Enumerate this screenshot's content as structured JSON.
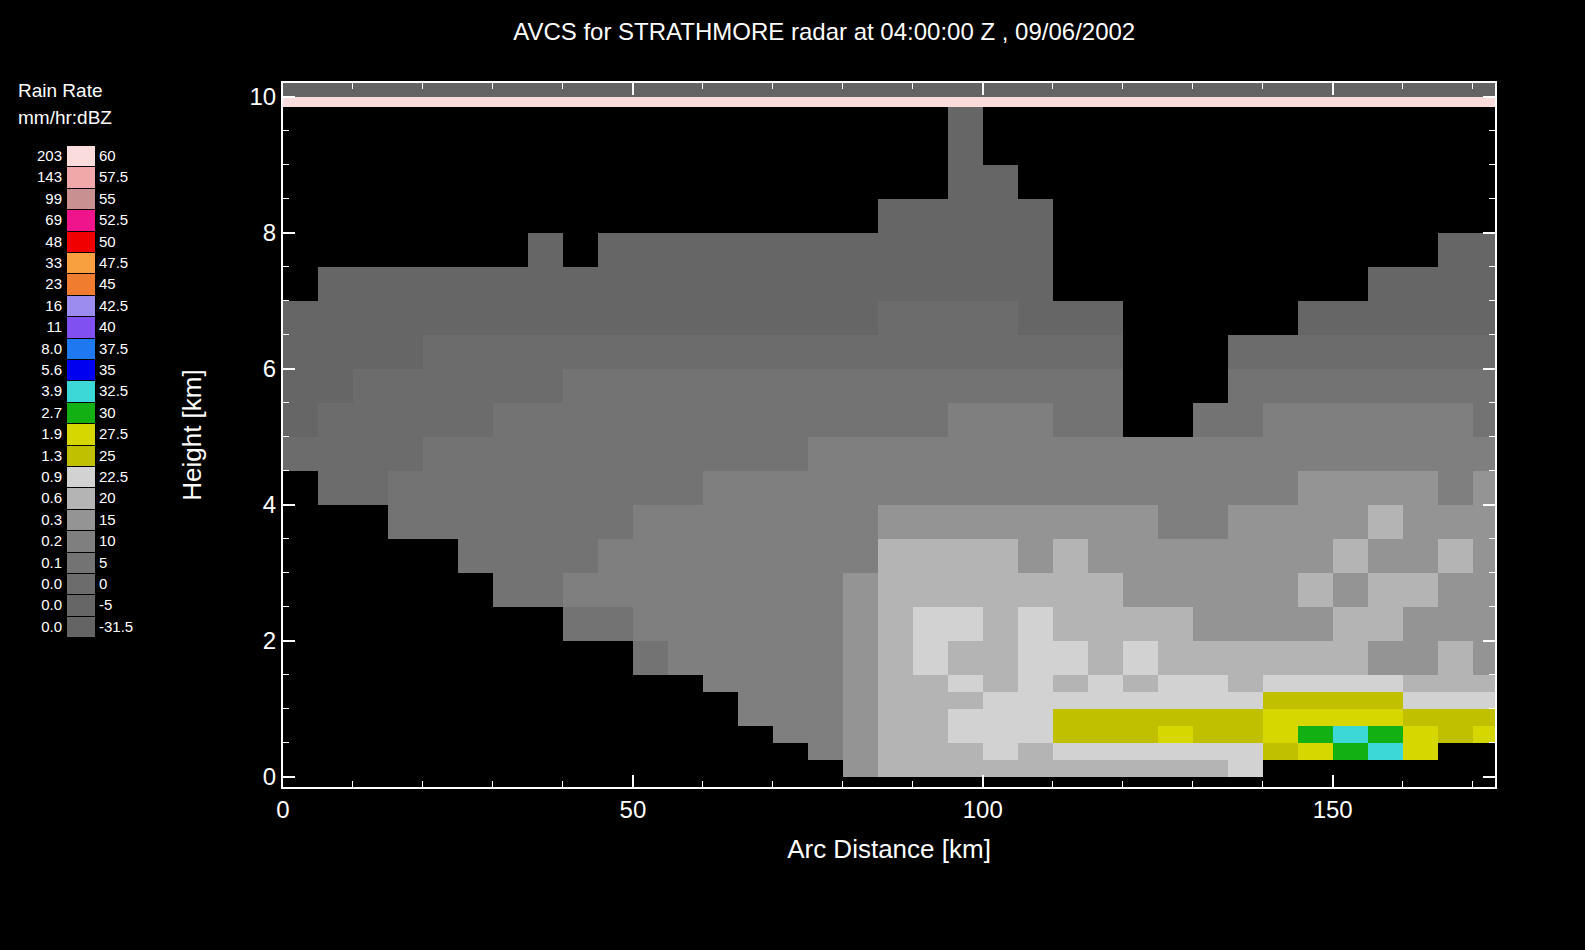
{
  "chart_data": {
    "type": "heatmap",
    "title": "AVCS for STRATHMORE radar at 04:00:00 Z , 09/06/2002",
    "x_label": "Arc Distance [km]",
    "y_label": "Height [km]",
    "xlim": [
      0,
      173.2
    ],
    "ylim": [
      -0.15,
      10.2
    ],
    "xticks": [
      0,
      50,
      100,
      150
    ],
    "yticks": [
      0,
      2,
      4,
      6,
      8,
      10
    ],
    "grid": false,
    "x": [
      0,
      5,
      10,
      15,
      20,
      25,
      30,
      35,
      40,
      45,
      50,
      55,
      60,
      65,
      70,
      75,
      80,
      85,
      90,
      95,
      100,
      105,
      110,
      115,
      120,
      125,
      130,
      135,
      140,
      145,
      150,
      155,
      160,
      165,
      170,
      175
    ],
    "y": [
      0,
      0.25,
      0.5,
      0.75,
      1,
      1.25,
      1.5,
      2,
      2.5,
      3,
      3.5,
      4,
      4.5,
      5,
      5.5,
      6,
      6.5,
      7,
      7.5,
      8,
      8.5,
      9,
      9.5,
      9.85,
      10,
      10.2
    ],
    "z": [
      [
        null,
        null,
        null,
        null,
        null,
        null,
        null,
        null,
        null,
        null,
        null,
        null,
        null,
        null,
        null,
        null,
        15,
        20,
        20,
        20,
        20,
        20,
        20,
        20,
        20,
        20,
        20,
        22.5,
        null,
        null,
        null,
        null,
        null,
        null,
        null
      ],
      [
        null,
        null,
        null,
        null,
        null,
        null,
        null,
        null,
        null,
        null,
        null,
        null,
        null,
        null,
        null,
        10,
        15,
        20,
        20,
        20,
        22.5,
        20,
        22.5,
        22.5,
        22.5,
        22.5,
        22.5,
        22.5,
        25,
        27.5,
        30,
        32.5,
        27.5,
        null,
        null
      ],
      [
        null,
        null,
        null,
        null,
        null,
        null,
        null,
        null,
        null,
        null,
        null,
        null,
        null,
        null,
        10,
        10,
        15,
        20,
        20,
        22.5,
        22.5,
        22.5,
        25,
        25,
        25,
        27.5,
        25,
        25,
        27.5,
        30,
        32.5,
        30,
        27.5,
        25,
        27.5
      ],
      [
        null,
        null,
        null,
        null,
        null,
        null,
        null,
        null,
        null,
        null,
        null,
        null,
        null,
        10,
        10,
        10,
        15,
        20,
        20,
        22.5,
        22.5,
        22.5,
        25,
        25,
        25,
        25,
        25,
        25,
        27.5,
        27.5,
        27.5,
        27.5,
        25,
        25,
        25
      ],
      [
        null,
        null,
        null,
        null,
        null,
        null,
        null,
        null,
        null,
        null,
        null,
        null,
        null,
        10,
        10,
        10,
        15,
        20,
        20,
        20,
        22.5,
        22.5,
        22.5,
        22.5,
        22.5,
        22.5,
        22.5,
        22.5,
        25,
        25,
        25,
        25,
        22.5,
        22.5,
        22.5
      ],
      [
        null,
        null,
        null,
        null,
        null,
        null,
        null,
        null,
        null,
        null,
        null,
        null,
        10,
        10,
        10,
        10,
        15,
        20,
        20,
        22.5,
        20,
        22.5,
        20,
        22.5,
        20,
        22.5,
        22.5,
        20,
        22.5,
        22.5,
        22.5,
        22.5,
        20,
        20,
        20
      ],
      [
        null,
        null,
        null,
        null,
        null,
        null,
        null,
        null,
        null,
        null,
        5,
        10,
        10,
        10,
        10,
        10,
        15,
        20,
        22.5,
        20,
        20,
        22.5,
        22.5,
        20,
        22.5,
        20,
        20,
        20,
        20,
        20,
        20,
        15,
        15,
        20,
        15
      ],
      [
        null,
        null,
        null,
        null,
        null,
        null,
        null,
        null,
        5,
        5,
        10,
        10,
        10,
        10,
        10,
        10,
        15,
        20,
        22.5,
        22.5,
        20,
        22.5,
        20,
        20,
        20,
        20,
        15,
        15,
        15,
        15,
        20,
        20,
        15,
        15,
        15
      ],
      [
        null,
        null,
        null,
        null,
        null,
        null,
        5,
        5,
        10,
        10,
        10,
        10,
        10,
        10,
        10,
        10,
        15,
        20,
        20,
        20,
        20,
        20,
        20,
        20,
        15,
        15,
        15,
        15,
        15,
        20,
        15,
        20,
        20,
        15,
        15
      ],
      [
        null,
        null,
        null,
        null,
        null,
        5,
        5,
        5,
        5,
        10,
        10,
        10,
        10,
        10,
        10,
        10,
        10,
        20,
        20,
        20,
        20,
        15,
        20,
        15,
        15,
        15,
        15,
        15,
        15,
        15,
        20,
        15,
        15,
        20,
        15
      ],
      [
        null,
        null,
        null,
        5,
        5,
        5,
        5,
        5,
        5,
        5,
        10,
        10,
        10,
        10,
        10,
        10,
        10,
        15,
        15,
        15,
        15,
        15,
        15,
        15,
        15,
        10,
        10,
        15,
        15,
        15,
        15,
        20,
        15,
        15,
        15
      ],
      [
        null,
        0,
        0,
        5,
        5,
        5,
        5,
        5,
        5,
        5,
        5,
        5,
        10,
        10,
        10,
        10,
        10,
        10,
        10,
        10,
        10,
        10,
        10,
        10,
        10,
        10,
        10,
        10,
        10,
        15,
        15,
        15,
        15,
        10,
        15
      ],
      [
        0,
        0,
        0,
        0,
        5,
        5,
        5,
        5,
        5,
        5,
        5,
        5,
        5,
        5,
        5,
        10,
        10,
        10,
        10,
        10,
        10,
        10,
        10,
        10,
        10,
        10,
        10,
        10,
        10,
        10,
        10,
        10,
        10,
        10,
        10
      ],
      [
        -5,
        0,
        0,
        0,
        0,
        0,
        5,
        5,
        5,
        5,
        5,
        5,
        5,
        5,
        5,
        5,
        5,
        5,
        5,
        10,
        10,
        10,
        5,
        5,
        null,
        null,
        5,
        5,
        10,
        10,
        10,
        10,
        10,
        10,
        5
      ],
      [
        -5,
        -5,
        0,
        0,
        0,
        0,
        0,
        0,
        5,
        5,
        5,
        5,
        5,
        5,
        5,
        5,
        5,
        5,
        5,
        5,
        5,
        5,
        5,
        5,
        null,
        null,
        null,
        5,
        5,
        5,
        5,
        5,
        5,
        5,
        5
      ],
      [
        -5,
        -5,
        -5,
        -5,
        0,
        0,
        0,
        0,
        0,
        0,
        0,
        0,
        0,
        0,
        0,
        0,
        0,
        0,
        0,
        0,
        0,
        0,
        0,
        0,
        null,
        null,
        null,
        0,
        0,
        0,
        0,
        0,
        0,
        0,
        0
      ],
      [
        -5,
        -5,
        -5,
        -5,
        -5,
        -5,
        -5,
        -5,
        -5,
        -5,
        -5,
        -5,
        -5,
        -5,
        -5,
        -5,
        -5,
        0,
        0,
        0,
        0,
        -5,
        -5,
        -5,
        null,
        null,
        null,
        null,
        null,
        -5,
        -5,
        -5,
        -5,
        -5,
        -5
      ],
      [
        null,
        -5,
        -5,
        -5,
        -5,
        -5,
        -5,
        -5,
        -5,
        -5,
        -5,
        -5,
        -5,
        -5,
        -5,
        -5,
        -5,
        -5,
        -5,
        -5,
        -5,
        -5,
        null,
        null,
        null,
        null,
        null,
        null,
        null,
        null,
        null,
        -5,
        -5,
        -5,
        -5
      ],
      [
        null,
        null,
        null,
        null,
        null,
        null,
        null,
        -5,
        null,
        -5,
        -5,
        -5,
        -5,
        -5,
        -5,
        -5,
        -5,
        -5,
        -5,
        -5,
        -5,
        -5,
        null,
        null,
        null,
        null,
        null,
        null,
        null,
        null,
        null,
        null,
        null,
        -5,
        -5
      ],
      [
        null,
        null,
        null,
        null,
        null,
        null,
        null,
        null,
        null,
        null,
        null,
        null,
        null,
        null,
        null,
        null,
        null,
        -5,
        -5,
        -5,
        -5,
        -5,
        null,
        null,
        null,
        null,
        null,
        null,
        null,
        null,
        null,
        null,
        null,
        null,
        null
      ],
      [
        null,
        null,
        null,
        null,
        null,
        null,
        null,
        null,
        null,
        null,
        null,
        null,
        null,
        null,
        null,
        null,
        null,
        null,
        null,
        -5,
        -5,
        null,
        null,
        null,
        null,
        null,
        null,
        null,
        null,
        null,
        null,
        null,
        null,
        null,
        null
      ],
      [
        null,
        null,
        null,
        null,
        null,
        null,
        null,
        null,
        null,
        null,
        null,
        null,
        null,
        null,
        null,
        null,
        null,
        null,
        null,
        -5,
        null,
        null,
        null,
        null,
        null,
        null,
        null,
        null,
        null,
        null,
        null,
        null,
        null,
        null,
        null
      ],
      [
        null,
        null,
        null,
        null,
        null,
        null,
        null,
        null,
        null,
        null,
        null,
        null,
        null,
        null,
        null,
        null,
        null,
        null,
        null,
        -5,
        null,
        null,
        null,
        null,
        null,
        null,
        null,
        null,
        null,
        null,
        null,
        null,
        null,
        null,
        null
      ],
      [
        60,
        60,
        60,
        60,
        60,
        60,
        60,
        60,
        60,
        60,
        60,
        60,
        60,
        60,
        60,
        60,
        60,
        60,
        60,
        60,
        60,
        60,
        60,
        60,
        60,
        60,
        60,
        60,
        60,
        60,
        60,
        60,
        60,
        60,
        60
      ],
      [
        -31.5,
        -31.5,
        -31.5,
        -31.5,
        -31.5,
        -31.5,
        -31.5,
        -31.5,
        -31.5,
        -31.5,
        -31.5,
        -31.5,
        -31.5,
        -31.5,
        -31.5,
        -31.5,
        -31.5,
        -31.5,
        -31.5,
        -31.5,
        -31.5,
        -31.5,
        -31.5,
        -31.5,
        -31.5,
        -31.5,
        -31.5,
        -31.5,
        -31.5,
        -31.5,
        -31.5,
        -31.5,
        -31.5,
        -31.5,
        -31.5
      ]
    ],
    "colorbar": {
      "title": [
        "Rain Rate",
        "mm/hr:dBZ"
      ],
      "levels": [
        -31.5,
        -5,
        0,
        5,
        10,
        15,
        20,
        22.5,
        25,
        27.5,
        30,
        32.5,
        35,
        37.5,
        40,
        42.5,
        45,
        47.5,
        50,
        52.5,
        55,
        57.5,
        60
      ],
      "rain_rates": [
        "0.0",
        "0.0",
        "0.0",
        "0.1",
        "0.2",
        "0.3",
        "0.6",
        "0.9",
        "1.3",
        "1.9",
        "2.7",
        "3.9",
        "5.6",
        "8.0",
        "11",
        "16",
        "23",
        "33",
        "48",
        "69",
        "99",
        "143",
        "203"
      ],
      "colors": [
        "#646464",
        "#666666",
        "#6c6c6c",
        "#737373",
        "#7f7f7f",
        "#949494",
        "#b4b4b4",
        "#d2d2d2",
        "#c0c000",
        "#d6d600",
        "#12b012",
        "#3cd8d8",
        "#0000f0",
        "#1e78f0",
        "#8050f0",
        "#9c8cf0",
        "#f07c30",
        "#f8a040",
        "#f00000",
        "#f0148c",
        "#c89090",
        "#f0a8a8",
        "#fadcdc"
      ]
    }
  }
}
